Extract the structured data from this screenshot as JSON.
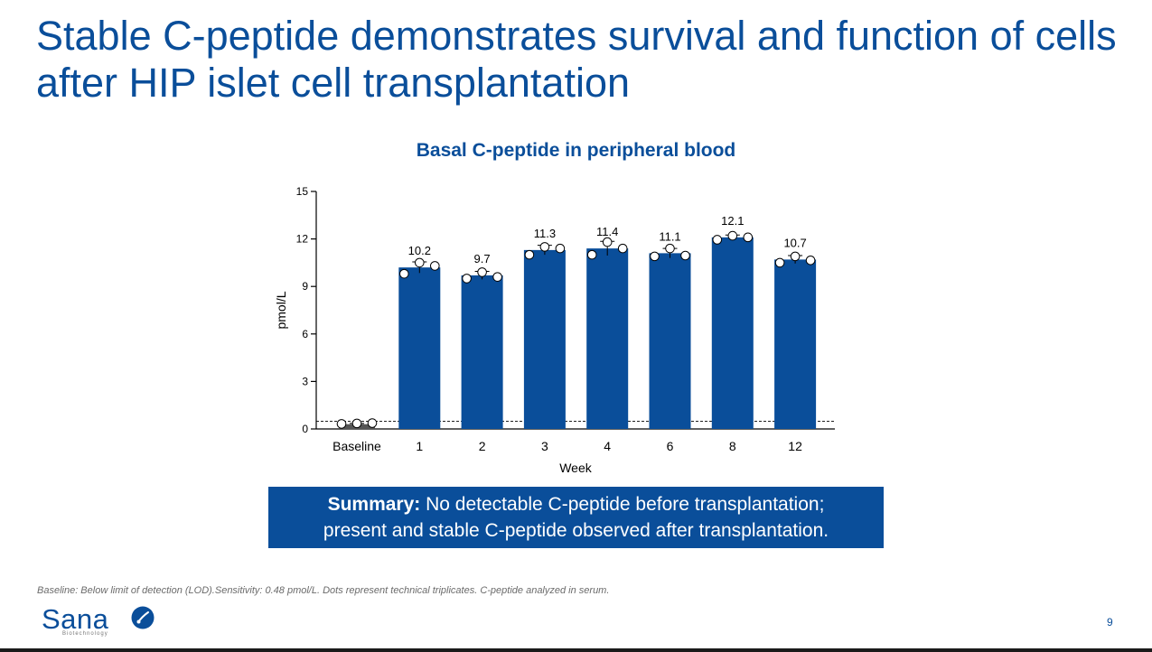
{
  "slide": {
    "title": "Stable C-peptide demonstrates survival and function of cells after HIP islet cell transplantation",
    "summary_bold": "Summary:",
    "summary_line1": " No detectable C-peptide before transplantation;",
    "summary_line2": "present and stable C-peptide observed after transplantation.",
    "footnote": "Baseline: Below limit of detection (LOD).Sensitivity: 0.48 pmol/L. Dots represent technical triplicates. C-peptide analyzed in serum.",
    "logo_text": "Sana",
    "logo_sub": "Biotechnology",
    "page_number": "9"
  },
  "chart_data": {
    "type": "bar",
    "title": "Basal C-peptide in peripheral blood",
    "xlabel": "Week",
    "ylabel": "pmol/L",
    "ylim": [
      0,
      15
    ],
    "yticks": [
      0,
      3,
      6,
      9,
      12,
      15
    ],
    "categories": [
      "Baseline",
      "1",
      "2",
      "3",
      "4",
      "6",
      "8",
      "12"
    ],
    "values": [
      0.3,
      10.2,
      9.7,
      11.3,
      11.4,
      11.1,
      12.1,
      10.7
    ],
    "value_labels": [
      "",
      "10.2",
      "9.7",
      "11.3",
      "11.4",
      "11.1",
      "12.1",
      "10.7"
    ],
    "errors": [
      0.05,
      0.35,
      0.25,
      0.3,
      0.45,
      0.3,
      0.15,
      0.25
    ],
    "replicates": [
      [
        0.32,
        0.35,
        0.37
      ],
      [
        9.8,
        10.5,
        10.3
      ],
      [
        9.5,
        9.9,
        9.6
      ],
      [
        11.0,
        11.5,
        11.4
      ],
      [
        11.0,
        11.8,
        11.4
      ],
      [
        10.9,
        11.4,
        10.95
      ],
      [
        11.95,
        12.2,
        12.1
      ],
      [
        10.5,
        10.9,
        10.65
      ]
    ],
    "lod_line": 0.48,
    "colors": {
      "bar": "#0a4e9a",
      "title": "#0a4e9a",
      "axis": "#000000",
      "dot_fill": "#ffffff"
    }
  }
}
